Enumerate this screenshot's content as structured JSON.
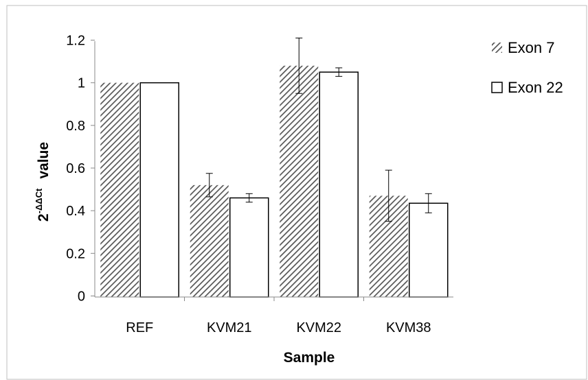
{
  "chart_data": {
    "type": "bar",
    "xlabel": "Sample",
    "ylabel": {
      "base": "2",
      "superscript": "-ΔΔCt",
      "suffix": "value"
    },
    "categories": [
      "REF",
      "KVM21",
      "KVM22",
      "KVM38"
    ],
    "ylim": [
      0,
      1.2
    ],
    "yticks": [
      0,
      0.2,
      0.4,
      0.6,
      0.8,
      1,
      1.2
    ],
    "grid": false,
    "legend_position": "top-right",
    "series": [
      {
        "name": "Exon 7",
        "fill": "hatched",
        "color": "#555555",
        "values": [
          1.0,
          0.52,
          1.08,
          0.47
        ],
        "errors": [
          0,
          0.055,
          0.13,
          0.12
        ]
      },
      {
        "name": "Exon 22",
        "fill": "white",
        "color": "#000000",
        "values": [
          1.0,
          0.46,
          1.05,
          0.435
        ],
        "errors": [
          0,
          0.02,
          0.02,
          0.045
        ]
      }
    ]
  }
}
